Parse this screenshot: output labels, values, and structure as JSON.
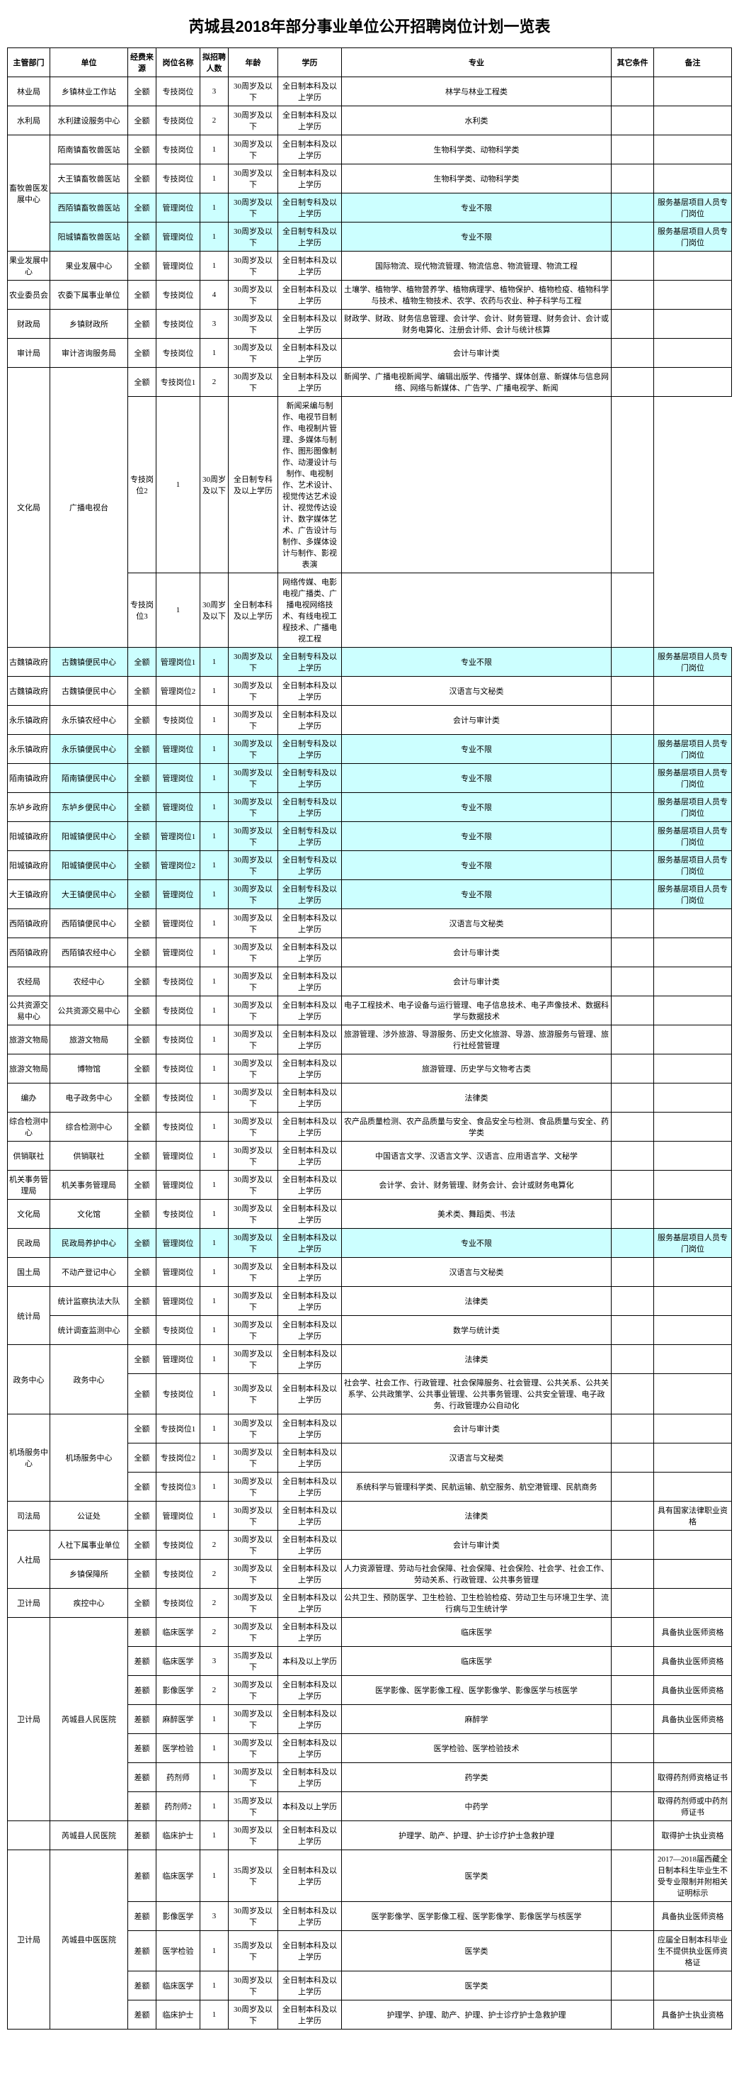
{
  "title": "芮城县2018年部分事业单位公开招聘岗位计划一览表",
  "headers": [
    "主管部门",
    "单位",
    "经费来源",
    "岗位名称",
    "拟招聘人数",
    "年龄",
    "学历",
    "专业",
    "其它条件",
    "备注"
  ],
  "rows": [
    {
      "dept": "林业局",
      "unit": "乡镇林业工作站",
      "src": "全额",
      "pos": "专技岗位",
      "cnt": "3",
      "age": "30周岁及以下",
      "edu": "全日制本科及以上学历",
      "major": "林学与林业工程类",
      "other": "",
      "remark": "",
      "hl": false,
      "deptSpan": 1,
      "unitSpan": 1
    },
    {
      "dept": "水利局",
      "unit": "水利建设服务中心",
      "src": "全额",
      "pos": "专技岗位",
      "cnt": "2",
      "age": "30周岁及以下",
      "edu": "全日制本科及以上学历",
      "major": "水利类",
      "other": "",
      "remark": "",
      "hl": false,
      "deptSpan": 1,
      "unitSpan": 1
    },
    {
      "dept": "畜牧兽医发展中心",
      "unit": "陌南镇畜牧兽医站",
      "src": "全额",
      "pos": "专技岗位",
      "cnt": "1",
      "age": "30周岁及以下",
      "edu": "全日制本科及以上学历",
      "major": "生物科学类、动物科学类",
      "other": "",
      "remark": "",
      "hl": false,
      "deptSpan": 4,
      "unitSpan": 1
    },
    {
      "dept": "",
      "unit": "大王镇畜牧兽医站",
      "src": "全额",
      "pos": "专技岗位",
      "cnt": "1",
      "age": "30周岁及以下",
      "edu": "全日制本科及以上学历",
      "major": "生物科学类、动物科学类",
      "other": "",
      "remark": "",
      "hl": false,
      "deptSpan": 0,
      "unitSpan": 1
    },
    {
      "dept": "",
      "unit": "西陌镇畜牧兽医站",
      "src": "全额",
      "pos": "管理岗位",
      "cnt": "1",
      "age": "30周岁及以下",
      "edu": "全日制专科及以上学历",
      "major": "专业不限",
      "other": "",
      "remark": "服务基层项目人员专门岗位",
      "hl": true,
      "deptSpan": 0,
      "unitSpan": 1
    },
    {
      "dept": "",
      "unit": "阳城镇畜牧兽医站",
      "src": "全额",
      "pos": "管理岗位",
      "cnt": "1",
      "age": "30周岁及以下",
      "edu": "全日制专科及以上学历",
      "major": "专业不限",
      "other": "",
      "remark": "服务基层项目人员专门岗位",
      "hl": true,
      "deptSpan": 0,
      "unitSpan": 1
    },
    {
      "dept": "果业发展中心",
      "unit": "果业发展中心",
      "src": "全额",
      "pos": "管理岗位",
      "cnt": "1",
      "age": "30周岁及以下",
      "edu": "全日制本科及以上学历",
      "major": "国际物流、现代物流管理、物流信息、物流管理、物流工程",
      "other": "",
      "remark": "",
      "hl": false,
      "deptSpan": 1,
      "unitSpan": 1
    },
    {
      "dept": "农业委员会",
      "unit": "农委下属事业单位",
      "src": "全额",
      "pos": "专技岗位",
      "cnt": "4",
      "age": "30周岁及以下",
      "edu": "全日制本科及以上学历",
      "major": "土壤学、植物学、植物营养学、植物病理学、植物保护、植物检疫、植物科学与技术、植物生物技术、农学、农药与农业、种子科学与工程",
      "other": "",
      "remark": "",
      "hl": false,
      "deptSpan": 1,
      "unitSpan": 1
    },
    {
      "dept": "财政局",
      "unit": "乡镇财政所",
      "src": "全额",
      "pos": "专技岗位",
      "cnt": "3",
      "age": "30周岁及以下",
      "edu": "全日制本科及以上学历",
      "major": "财政学、财政、财务信息管理、会计学、会计、财务管理、财务会计、会计或财务电算化、注册会计师、会计与统计核算",
      "other": "",
      "remark": "",
      "hl": false,
      "deptSpan": 1,
      "unitSpan": 1
    },
    {
      "dept": "审计局",
      "unit": "审计咨询服务局",
      "src": "全额",
      "pos": "专技岗位",
      "cnt": "1",
      "age": "30周岁及以下",
      "edu": "全日制本科及以上学历",
      "major": "会计与审计类",
      "other": "",
      "remark": "",
      "hl": false,
      "deptSpan": 1,
      "unitSpan": 1
    },
    {
      "dept": "文化局",
      "unit": "广播电视台",
      "src": "全额",
      "pos": "专技岗位1",
      "cnt": "2",
      "age": "30周岁及以下",
      "edu": "全日制本科及以上学历",
      "major": "新闻学、广播电视新闻学、编辑出版学、传播学、媒体创意、新媒体与信息网络、网络与新媒体、广告学、广播电视学、新闻",
      "other": "",
      "remark": "",
      "hl": false,
      "deptSpan": 3,
      "unitSpan": 3
    },
    {
      "dept": "",
      "unit": "",
      "src": "",
      "pos": "专技岗位2",
      "cnt": "1",
      "age": "30周岁及以下",
      "edu": "全日制专科及以上学历",
      "major": "新闻采编与制作、电视节目制作、电视制片管理、多媒体与制作、图形图像制作、动漫设计与制作、电视制作、艺术设计、视觉传达艺术设计、视觉传达设计、数字媒体艺术、广告设计与制作、多媒体设计与制作、影视表演",
      "other": "",
      "remark": "",
      "hl": false,
      "deptSpan": 0,
      "unitSpan": 0
    },
    {
      "dept": "",
      "unit": "",
      "src": "",
      "pos": "专技岗位3",
      "cnt": "1",
      "age": "30周岁及以下",
      "edu": "全日制本科及以上学历",
      "major": "网络传媒、电影电视广播类、广播电视网络技术、有线电视工程技术、广播电视工程",
      "other": "",
      "remark": "",
      "hl": false,
      "deptSpan": 0,
      "unitSpan": 0
    },
    {
      "dept": "古魏镇政府",
      "unit": "古魏镇便民中心",
      "src": "全额",
      "pos": "管理岗位1",
      "cnt": "1",
      "age": "30周岁及以下",
      "edu": "全日制专科及以上学历",
      "major": "专业不限",
      "other": "",
      "remark": "服务基层项目人员专门岗位",
      "hl": true,
      "deptSpan": 1,
      "unitSpan": 1
    },
    {
      "dept": "古魏镇政府",
      "unit": "古魏镇便民中心",
      "src": "全额",
      "pos": "管理岗位2",
      "cnt": "1",
      "age": "30周岁及以下",
      "edu": "全日制本科及以上学历",
      "major": "汉语言与文秘类",
      "other": "",
      "remark": "",
      "hl": false,
      "deptSpan": 1,
      "unitSpan": 1
    },
    {
      "dept": "永乐镇政府",
      "unit": "永乐镇农经中心",
      "src": "全额",
      "pos": "专技岗位",
      "cnt": "1",
      "age": "30周岁及以下",
      "edu": "全日制本科及以上学历",
      "major": "会计与审计类",
      "other": "",
      "remark": "",
      "hl": false,
      "deptSpan": 1,
      "unitSpan": 1
    },
    {
      "dept": "永乐镇政府",
      "unit": "永乐镇便民中心",
      "src": "全额",
      "pos": "管理岗位",
      "cnt": "1",
      "age": "30周岁及以下",
      "edu": "全日制专科及以上学历",
      "major": "专业不限",
      "other": "",
      "remark": "服务基层项目人员专门岗位",
      "hl": true,
      "deptSpan": 1,
      "unitSpan": 1
    },
    {
      "dept": "陌南镇政府",
      "unit": "陌南镇便民中心",
      "src": "全额",
      "pos": "管理岗位",
      "cnt": "1",
      "age": "30周岁及以下",
      "edu": "全日制专科及以上学历",
      "major": "专业不限",
      "other": "",
      "remark": "服务基层项目人员专门岗位",
      "hl": true,
      "deptSpan": 1,
      "unitSpan": 1
    },
    {
      "dept": "东垆乡政府",
      "unit": "东垆乡便民中心",
      "src": "全额",
      "pos": "管理岗位",
      "cnt": "1",
      "age": "30周岁及以下",
      "edu": "全日制专科及以上学历",
      "major": "专业不限",
      "other": "",
      "remark": "服务基层项目人员专门岗位",
      "hl": true,
      "deptSpan": 1,
      "unitSpan": 1
    },
    {
      "dept": "阳城镇政府",
      "unit": "阳城镇便民中心",
      "src": "全额",
      "pos": "管理岗位1",
      "cnt": "1",
      "age": "30周岁及以下",
      "edu": "全日制专科及以上学历",
      "major": "专业不限",
      "other": "",
      "remark": "服务基层项目人员专门岗位",
      "hl": true,
      "deptSpan": 1,
      "unitSpan": 1
    },
    {
      "dept": "阳城镇政府",
      "unit": "阳城镇便民中心",
      "src": "全额",
      "pos": "管理岗位2",
      "cnt": "1",
      "age": "30周岁及以下",
      "edu": "全日制专科及以上学历",
      "major": "专业不限",
      "other": "",
      "remark": "服务基层项目人员专门岗位",
      "hl": true,
      "deptSpan": 1,
      "unitSpan": 1
    },
    {
      "dept": "大王镇政府",
      "unit": "大王镇便民中心",
      "src": "全额",
      "pos": "管理岗位",
      "cnt": "1",
      "age": "30周岁及以下",
      "edu": "全日制专科及以上学历",
      "major": "专业不限",
      "other": "",
      "remark": "服务基层项目人员专门岗位",
      "hl": true,
      "deptSpan": 1,
      "unitSpan": 1
    },
    {
      "dept": "西陌镇政府",
      "unit": "西陌镇便民中心",
      "src": "全额",
      "pos": "管理岗位",
      "cnt": "1",
      "age": "30周岁及以下",
      "edu": "全日制本科及以上学历",
      "major": "汉语言与文秘类",
      "other": "",
      "remark": "",
      "hl": false,
      "deptSpan": 1,
      "unitSpan": 1
    },
    {
      "dept": "西陌镇政府",
      "unit": "西陌镇农经中心",
      "src": "全额",
      "pos": "管理岗位",
      "cnt": "1",
      "age": "30周岁及以下",
      "edu": "全日制本科及以上学历",
      "major": "会计与审计类",
      "other": "",
      "remark": "",
      "hl": false,
      "deptSpan": 1,
      "unitSpan": 1
    },
    {
      "dept": "农经局",
      "unit": "农经中心",
      "src": "全额",
      "pos": "专技岗位",
      "cnt": "1",
      "age": "30周岁及以下",
      "edu": "全日制本科及以上学历",
      "major": "会计与审计类",
      "other": "",
      "remark": "",
      "hl": false,
      "deptSpan": 1,
      "unitSpan": 1
    },
    {
      "dept": "公共资源交易中心",
      "unit": "公共资源交易中心",
      "src": "全额",
      "pos": "专技岗位",
      "cnt": "1",
      "age": "30周岁及以下",
      "edu": "全日制本科及以上学历",
      "major": "电子工程技术、电子设备与运行管理、电子信息技术、电子声像技术、数据科学与数据技术",
      "other": "",
      "remark": "",
      "hl": false,
      "deptSpan": 1,
      "unitSpan": 1
    },
    {
      "dept": "旅游文物局",
      "unit": "旅游文物局",
      "src": "全额",
      "pos": "专技岗位",
      "cnt": "1",
      "age": "30周岁及以下",
      "edu": "全日制本科及以上学历",
      "major": "旅游管理、涉外旅游、导游服务、历史文化旅游、导游、旅游服务与管理、旅行社经营管理",
      "other": "",
      "remark": "",
      "hl": false,
      "deptSpan": 1,
      "unitSpan": 1
    },
    {
      "dept": "旅游文物局",
      "unit": "博物馆",
      "src": "全额",
      "pos": "专技岗位",
      "cnt": "1",
      "age": "30周岁及以下",
      "edu": "全日制本科及以上学历",
      "major": "旅游管理、历史学与文物考古类",
      "other": "",
      "remark": "",
      "hl": false,
      "deptSpan": 1,
      "unitSpan": 1
    },
    {
      "dept": "编办",
      "unit": "电子政务中心",
      "src": "全额",
      "pos": "专技岗位",
      "cnt": "1",
      "age": "30周岁及以下",
      "edu": "全日制本科及以上学历",
      "major": "法律类",
      "other": "",
      "remark": "",
      "hl": false,
      "deptSpan": 1,
      "unitSpan": 1
    },
    {
      "dept": "综合检测中心",
      "unit": "综合检测中心",
      "src": "全额",
      "pos": "专技岗位",
      "cnt": "1",
      "age": "30周岁及以下",
      "edu": "全日制本科及以上学历",
      "major": "农产品质量检测、农产品质量与安全、食品安全与检测、食品质量与安全、药学类",
      "other": "",
      "remark": "",
      "hl": false,
      "deptSpan": 1,
      "unitSpan": 1
    },
    {
      "dept": "供销联社",
      "unit": "供销联社",
      "src": "全额",
      "pos": "管理岗位",
      "cnt": "1",
      "age": "30周岁及以下",
      "edu": "全日制本科及以上学历",
      "major": "中国语言文学、汉语言文学、汉语言、应用语言学、文秘学",
      "other": "",
      "remark": "",
      "hl": false,
      "deptSpan": 1,
      "unitSpan": 1
    },
    {
      "dept": "机关事务管理局",
      "unit": "机关事务管理局",
      "src": "全额",
      "pos": "管理岗位",
      "cnt": "1",
      "age": "30周岁及以下",
      "edu": "全日制本科及以上学历",
      "major": "会计学、会计、财务管理、财务会计、会计或财务电算化",
      "other": "",
      "remark": "",
      "hl": false,
      "deptSpan": 1,
      "unitSpan": 1
    },
    {
      "dept": "文化局",
      "unit": "文化馆",
      "src": "全额",
      "pos": "专技岗位",
      "cnt": "1",
      "age": "30周岁及以下",
      "edu": "全日制本科及以上学历",
      "major": "美术类、舞蹈类、书法",
      "other": "",
      "remark": "",
      "hl": false,
      "deptSpan": 1,
      "unitSpan": 1
    },
    {
      "dept": "民政局",
      "unit": "民政局养护中心",
      "src": "全额",
      "pos": "管理岗位",
      "cnt": "1",
      "age": "30周岁及以下",
      "edu": "全日制本科及以上学历",
      "major": "专业不限",
      "other": "",
      "remark": "服务基层项目人员专门岗位",
      "hl": true,
      "deptSpan": 1,
      "unitSpan": 1
    },
    {
      "dept": "国土局",
      "unit": "不动产登记中心",
      "src": "全额",
      "pos": "管理岗位",
      "cnt": "1",
      "age": "30周岁及以下",
      "edu": "全日制本科及以上学历",
      "major": "汉语言与文秘类",
      "other": "",
      "remark": "",
      "hl": false,
      "deptSpan": 1,
      "unitSpan": 1
    },
    {
      "dept": "统计局",
      "unit": "统计监察执法大队",
      "src": "全额",
      "pos": "管理岗位",
      "cnt": "1",
      "age": "30周岁及以下",
      "edu": "全日制本科及以上学历",
      "major": "法律类",
      "other": "",
      "remark": "",
      "hl": false,
      "deptSpan": 2,
      "unitSpan": 1
    },
    {
      "dept": "",
      "unit": "统计调查监测中心",
      "src": "全额",
      "pos": "专技岗位",
      "cnt": "1",
      "age": "30周岁及以下",
      "edu": "全日制本科及以上学历",
      "major": "数学与统计类",
      "other": "",
      "remark": "",
      "hl": false,
      "deptSpan": 0,
      "unitSpan": 1
    },
    {
      "dept": "政务中心",
      "unit": "政务中心",
      "src": "全额",
      "pos": "管理岗位",
      "cnt": "1",
      "age": "30周岁及以下",
      "edu": "全日制本科及以上学历",
      "major": "法律类",
      "other": "",
      "remark": "",
      "hl": false,
      "deptSpan": 2,
      "unitSpan": 2
    },
    {
      "dept": "",
      "unit": "",
      "src": "全额",
      "pos": "专技岗位",
      "cnt": "1",
      "age": "30周岁及以下",
      "edu": "全日制本科及以上学历",
      "major": "社会学、社会工作、行政管理、社会保障服务、社会管理、公共关系、公共关系学、公共政策学、公共事业管理、公共事务管理、公共安全管理、电子政务、行政管理办公自动化",
      "other": "",
      "remark": "",
      "hl": false,
      "deptSpan": 0,
      "unitSpan": 0
    },
    {
      "dept": "机场服务中心",
      "unit": "机场服务中心",
      "src": "全额",
      "pos": "专技岗位1",
      "cnt": "1",
      "age": "30周岁及以下",
      "edu": "全日制本科及以上学历",
      "major": "会计与审计类",
      "other": "",
      "remark": "",
      "hl": false,
      "deptSpan": 3,
      "unitSpan": 3
    },
    {
      "dept": "",
      "unit": "",
      "src": "全额",
      "pos": "专技岗位2",
      "cnt": "1",
      "age": "30周岁及以下",
      "edu": "全日制本科及以上学历",
      "major": "汉语言与文秘类",
      "other": "",
      "remark": "",
      "hl": false,
      "deptSpan": 0,
      "unitSpan": 0
    },
    {
      "dept": "",
      "unit": "",
      "src": "全额",
      "pos": "专技岗位3",
      "cnt": "1",
      "age": "30周岁及以下",
      "edu": "全日制本科及以上学历",
      "major": "系统科学与管理科学类、民航运输、航空服务、航空港管理、民航商务",
      "other": "",
      "remark": "",
      "hl": false,
      "deptSpan": 0,
      "unitSpan": 0
    },
    {
      "dept": "司法局",
      "unit": "公证处",
      "src": "全额",
      "pos": "管理岗位",
      "cnt": "1",
      "age": "30周岁及以下",
      "edu": "全日制本科及以上学历",
      "major": "法律类",
      "other": "",
      "remark": "具有国家法律职业资格",
      "hl": false,
      "deptSpan": 1,
      "unitSpan": 1
    },
    {
      "dept": "人社局",
      "unit": "人社下属事业单位",
      "src": "全额",
      "pos": "专技岗位",
      "cnt": "2",
      "age": "30周岁及以下",
      "edu": "全日制本科及以上学历",
      "major": "会计与审计类",
      "other": "",
      "remark": "",
      "hl": false,
      "deptSpan": 2,
      "unitSpan": 1
    },
    {
      "dept": "",
      "unit": "乡镇保障所",
      "src": "全额",
      "pos": "专技岗位",
      "cnt": "2",
      "age": "30周岁及以下",
      "edu": "全日制本科及以上学历",
      "major": "人力资源管理、劳动与社会保障、社会保障、社会保险、社会学、社会工作、劳动关系、行政管理、公共事务管理",
      "other": "",
      "remark": "",
      "hl": false,
      "deptSpan": 0,
      "unitSpan": 1
    },
    {
      "dept": "卫计局",
      "unit": "疾控中心",
      "src": "全额",
      "pos": "专技岗位",
      "cnt": "2",
      "age": "30周岁及以下",
      "edu": "全日制本科及以上学历",
      "major": "公共卫生、预防医学、卫生检验、卫生检验检疫、劳动卫生与环境卫生学、流行病与卫生统计学",
      "other": "",
      "remark": "",
      "hl": false,
      "deptSpan": 1,
      "unitSpan": 1
    },
    {
      "dept": "卫计局",
      "unit": "芮城县人民医院",
      "src": "差额",
      "pos": "临床医学",
      "cnt": "2",
      "age": "30周岁及以下",
      "edu": "全日制本科及以上学历",
      "major": "临床医学",
      "other": "",
      "remark": "具备执业医师资格",
      "hl": false,
      "deptSpan": 7,
      "unitSpan": 7
    },
    {
      "dept": "",
      "unit": "",
      "src": "差额",
      "pos": "临床医学",
      "cnt": "3",
      "age": "35周岁及以下",
      "edu": "本科及以上学历",
      "major": "临床医学",
      "other": "",
      "remark": "具备执业医师资格",
      "hl": false,
      "deptSpan": 0,
      "unitSpan": 0
    },
    {
      "dept": "",
      "unit": "",
      "src": "差额",
      "pos": "影像医学",
      "cnt": "2",
      "age": "30周岁及以下",
      "edu": "全日制本科及以上学历",
      "major": "医学影像、医学影像工程、医学影像学、影像医学与核医学",
      "other": "",
      "remark": "具备执业医师资格",
      "hl": false,
      "deptSpan": 0,
      "unitSpan": 0
    },
    {
      "dept": "",
      "unit": "",
      "src": "差额",
      "pos": "麻醉医学",
      "cnt": "1",
      "age": "30周岁及以下",
      "edu": "全日制本科及以上学历",
      "major": "麻醉学",
      "other": "",
      "remark": "具备执业医师资格",
      "hl": false,
      "deptSpan": 0,
      "unitSpan": 0
    },
    {
      "dept": "",
      "unit": "",
      "src": "差额",
      "pos": "医学检验",
      "cnt": "1",
      "age": "30周岁及以下",
      "edu": "全日制本科及以上学历",
      "major": "医学检验、医学检验技术",
      "other": "",
      "remark": "",
      "hl": false,
      "deptSpan": 0,
      "unitSpan": 0
    },
    {
      "dept": "",
      "unit": "",
      "src": "差额",
      "pos": "药剂师",
      "cnt": "1",
      "age": "30周岁及以下",
      "edu": "全日制本科及以上学历",
      "major": "药学类",
      "other": "",
      "remark": "取得药剂师资格证书",
      "hl": false,
      "deptSpan": 0,
      "unitSpan": 0
    },
    {
      "dept": "",
      "unit": "",
      "src": "差额",
      "pos": "药剂师2",
      "cnt": "1",
      "age": "35周岁及以下",
      "edu": "本科及以上学历",
      "major": "中药学",
      "other": "",
      "remark": "取得药剂师或中药剂师证书",
      "hl": false,
      "deptSpan": 0,
      "unitSpan": 0
    },
    {
      "dept": "",
      "unit": "芮城县人民医院",
      "src": "差额",
      "pos": "临床护士",
      "cnt": "1",
      "age": "30周岁及以下",
      "edu": "全日制本科及以上学历",
      "major": "护理学、助产、护理、护士诊疗护士急救护理",
      "other": "",
      "remark": "取得护士执业资格",
      "hl": false,
      "deptSpan": 1,
      "unitSpan": 1
    },
    {
      "dept": "卫计局",
      "unit": "芮城县中医医院",
      "src": "差额",
      "pos": "临床医学",
      "cnt": "1",
      "age": "35周岁及以下",
      "edu": "全日制本科及以上学历",
      "major": "医学类",
      "other": "",
      "remark": "2017—2018届西藏全日制本科生毕业生不受专业限制并附相关证明标示",
      "hl": false,
      "deptSpan": 5,
      "unitSpan": 5
    },
    {
      "dept": "",
      "unit": "",
      "src": "差额",
      "pos": "影像医学",
      "cnt": "3",
      "age": "30周岁及以下",
      "edu": "全日制本科及以上学历",
      "major": "医学影像学、医学影像工程、医学影像学、影像医学与核医学",
      "other": "",
      "remark": "具备执业医师资格",
      "hl": false,
      "deptSpan": 0,
      "unitSpan": 0
    },
    {
      "dept": "",
      "unit": "",
      "src": "差额",
      "pos": "医学检验",
      "cnt": "1",
      "age": "35周岁及以下",
      "edu": "全日制本科及以上学历",
      "major": "医学类",
      "other": "",
      "remark": "应届全日制本科毕业生不提供执业医师资格证",
      "hl": false,
      "deptSpan": 0,
      "unitSpan": 0
    },
    {
      "dept": "",
      "unit": "",
      "src": "差额",
      "pos": "临床医学",
      "cnt": "1",
      "age": "30周岁及以下",
      "edu": "全日制本科及以上学历",
      "major": "医学类",
      "other": "",
      "remark": "",
      "hl": false,
      "deptSpan": 0,
      "unitSpan": 0
    },
    {
      "dept": "",
      "unit": "",
      "src": "差额",
      "pos": "临床护士",
      "cnt": "1",
      "age": "30周岁及以下",
      "edu": "全日制本科及以上学历",
      "major": "护理学、护理、助产、护理、护士诊疗护士急救护理",
      "other": "",
      "remark": "具备护士执业资格",
      "hl": false,
      "deptSpan": 0,
      "unitSpan": 0
    }
  ]
}
